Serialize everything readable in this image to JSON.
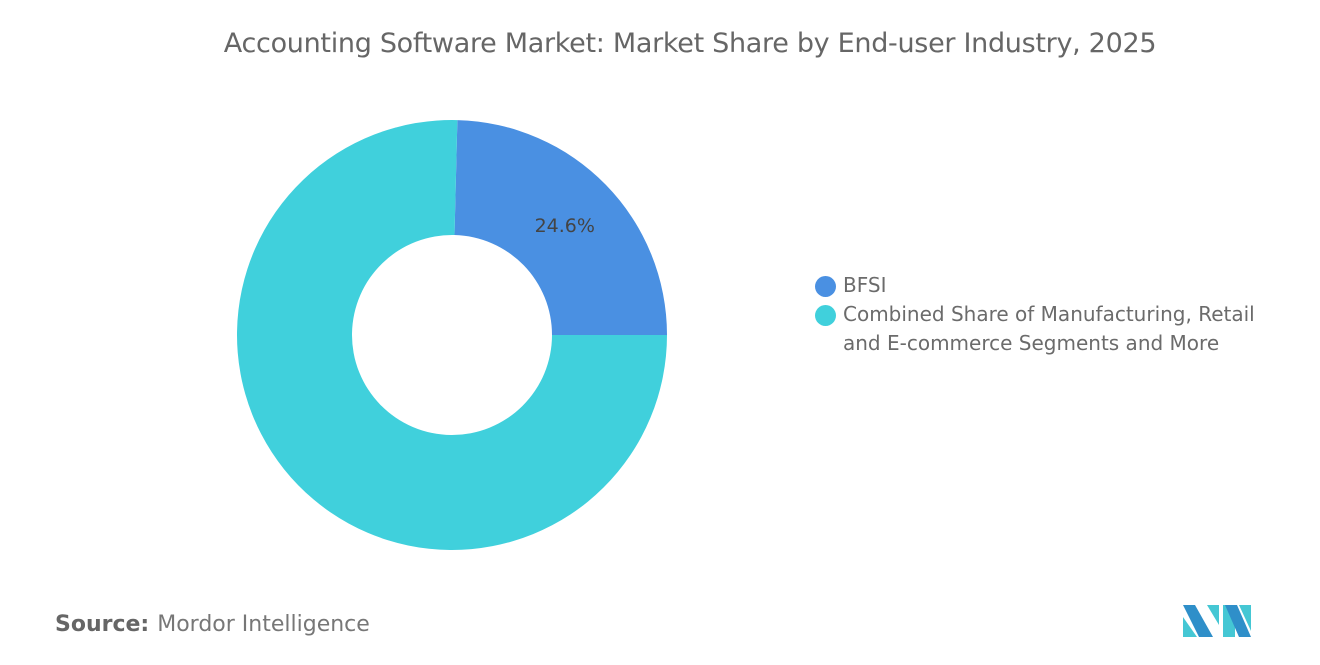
{
  "title": "Accounting Software Market: Market Share by End-user Industry, 2025",
  "chart_data": {
    "type": "pie",
    "variant": "donut",
    "title": "Accounting Software Market: Market Share by End-user Industry, 2025",
    "series": [
      {
        "name": "BFSI",
        "value": 24.6,
        "label": "24.6%",
        "color": "#4a90e2"
      },
      {
        "name": "Combined Share of Manufacturing, Retail and E-commerce Segments and More",
        "value": 75.4,
        "color": "#40d0dc"
      }
    ],
    "legend_placement": "right"
  },
  "source": {
    "label": "Source:",
    "value": "Mordor Intelligence"
  },
  "logo_text": "Mordor Intelligence"
}
